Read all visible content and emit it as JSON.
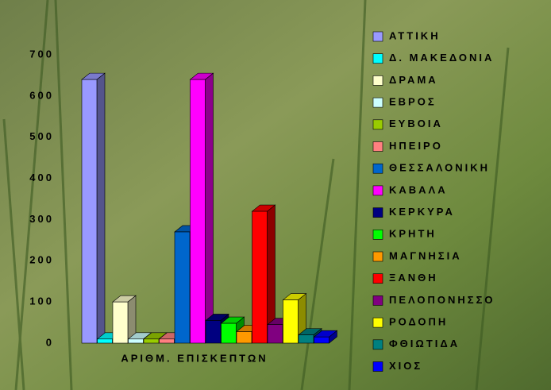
{
  "chart_data": {
    "type": "bar3d",
    "categories": [
      "ΑΡΙΘΜ. ΕΠΙΣΚΕΠΤΩΝ"
    ],
    "series": [
      {
        "name": "ΑΤΤΙΚΗ",
        "color": "#9999ff",
        "values": [
          640
        ]
      },
      {
        "name": "Δ. ΜΑΚΕΔΟΝΙΑ",
        "color": "#00ffff",
        "values": [
          10
        ]
      },
      {
        "name": "ΔΡΑΜΑ",
        "color": "#ffffcc",
        "values": [
          100
        ]
      },
      {
        "name": "ΕΒΡΟΣ",
        "color": "#ccffff",
        "values": [
          10
        ]
      },
      {
        "name": "ΕΥΒΟΙΑ",
        "color": "#99cc00",
        "values": [
          10
        ]
      },
      {
        "name": "ΗΠΕΙΡΟ",
        "color": "#ff8080",
        "values": [
          10
        ]
      },
      {
        "name": "ΘΕΣΣΑΛΟΝΙΚΗ",
        "color": "#0066cc",
        "values": [
          270
        ]
      },
      {
        "name": "ΚΑΒΑΛΑ",
        "color": "#ff00ff",
        "values": [
          640
        ]
      },
      {
        "name": "ΚΕΡΚΥΡΑ",
        "color": "#000080",
        "values": [
          55
        ]
      },
      {
        "name": "ΚΡΗΤΗ",
        "color": "#00ff00",
        "values": [
          48
        ]
      },
      {
        "name": "ΜΑΓΝΗΣΙΑ",
        "color": "#ff9900",
        "values": [
          28
        ]
      },
      {
        "name": "ΞΑΝΘΗ",
        "color": "#ff0000",
        "values": [
          320
        ]
      },
      {
        "name": "ΠΕΛΟΠΟΝΗΣΣΟ",
        "color": "#800080",
        "values": [
          45
        ]
      },
      {
        "name": "ΡΟΔΟΠΗ",
        "color": "#ffff00",
        "values": [
          105
        ]
      },
      {
        "name": "ΦΘΙΩΤΙΔΑ",
        "color": "#008080",
        "values": [
          20
        ]
      },
      {
        "name": "ΧΙΟΣ",
        "color": "#0000ff",
        "values": [
          15
        ]
      }
    ],
    "ylim": [
      0,
      700
    ],
    "yticks": [
      0,
      100,
      200,
      300,
      400,
      500,
      600,
      700
    ],
    "grid": false,
    "legend": "right"
  }
}
